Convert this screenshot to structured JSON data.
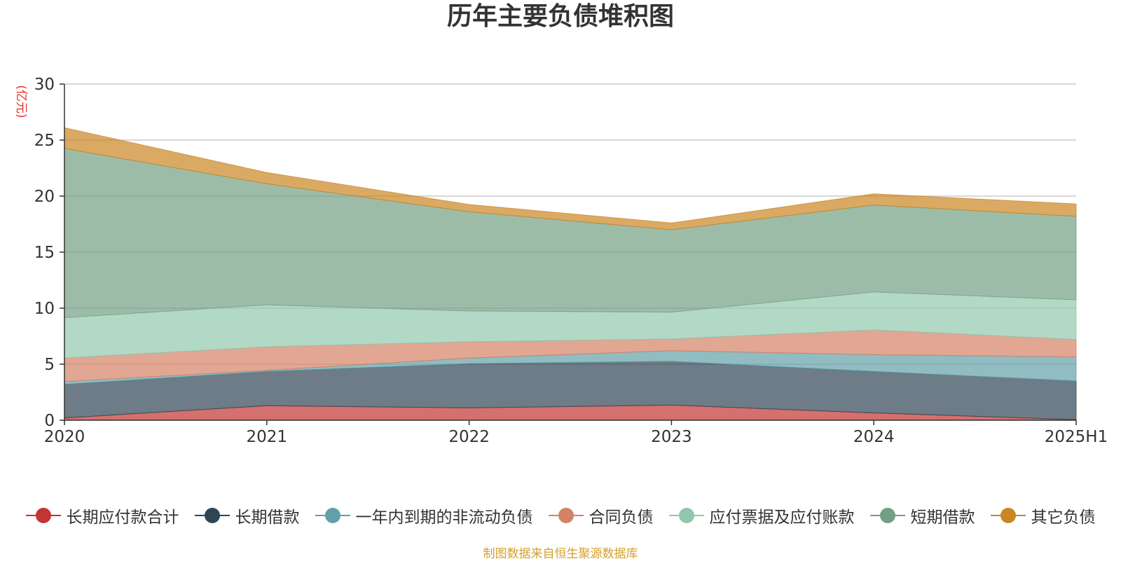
{
  "chart_data": {
    "type": "area",
    "stacked": true,
    "title": "历年主要负债堆积图",
    "y_unit_label": "(亿元)",
    "x": [
      "2020",
      "2021",
      "2022",
      "2023",
      "2024",
      "2025H1"
    ],
    "y_ticks": [
      "0",
      "5",
      "10",
      "15",
      "20",
      "25",
      "30"
    ],
    "ylim": [
      0,
      30
    ],
    "grid": true,
    "legend_position": "bottom",
    "series": [
      {
        "name": "长期应付款合计",
        "color": "#c23531",
        "values": [
          0.2,
          1.3,
          1.1,
          1.35,
          0.65,
          0.05
        ]
      },
      {
        "name": "长期借款",
        "color": "#2f4554",
        "values": [
          3.0,
          3.05,
          3.95,
          3.9,
          3.7,
          3.45
        ]
      },
      {
        "name": "一年内到期的非流动负债",
        "color": "#61a0a8",
        "values": [
          0.25,
          0.1,
          0.5,
          0.95,
          1.5,
          2.15
        ]
      },
      {
        "name": "合同负债",
        "color": "#d48265",
        "values": [
          2.1,
          2.1,
          1.45,
          1.05,
          2.2,
          1.55
        ]
      },
      {
        "name": "应付票据及应付账款",
        "color": "#91c7ae",
        "values": [
          3.6,
          3.75,
          2.75,
          2.4,
          3.4,
          3.55
        ]
      },
      {
        "name": "短期借款",
        "color": "#749f83",
        "values": [
          15.1,
          10.8,
          8.85,
          7.35,
          7.75,
          7.45
        ]
      },
      {
        "name": "其它负债",
        "color": "#ca8622",
        "values": [
          1.85,
          1.0,
          0.65,
          0.6,
          1.0,
          1.1
        ]
      }
    ]
  },
  "source_note": "制图数据来自恒生聚源数据库"
}
